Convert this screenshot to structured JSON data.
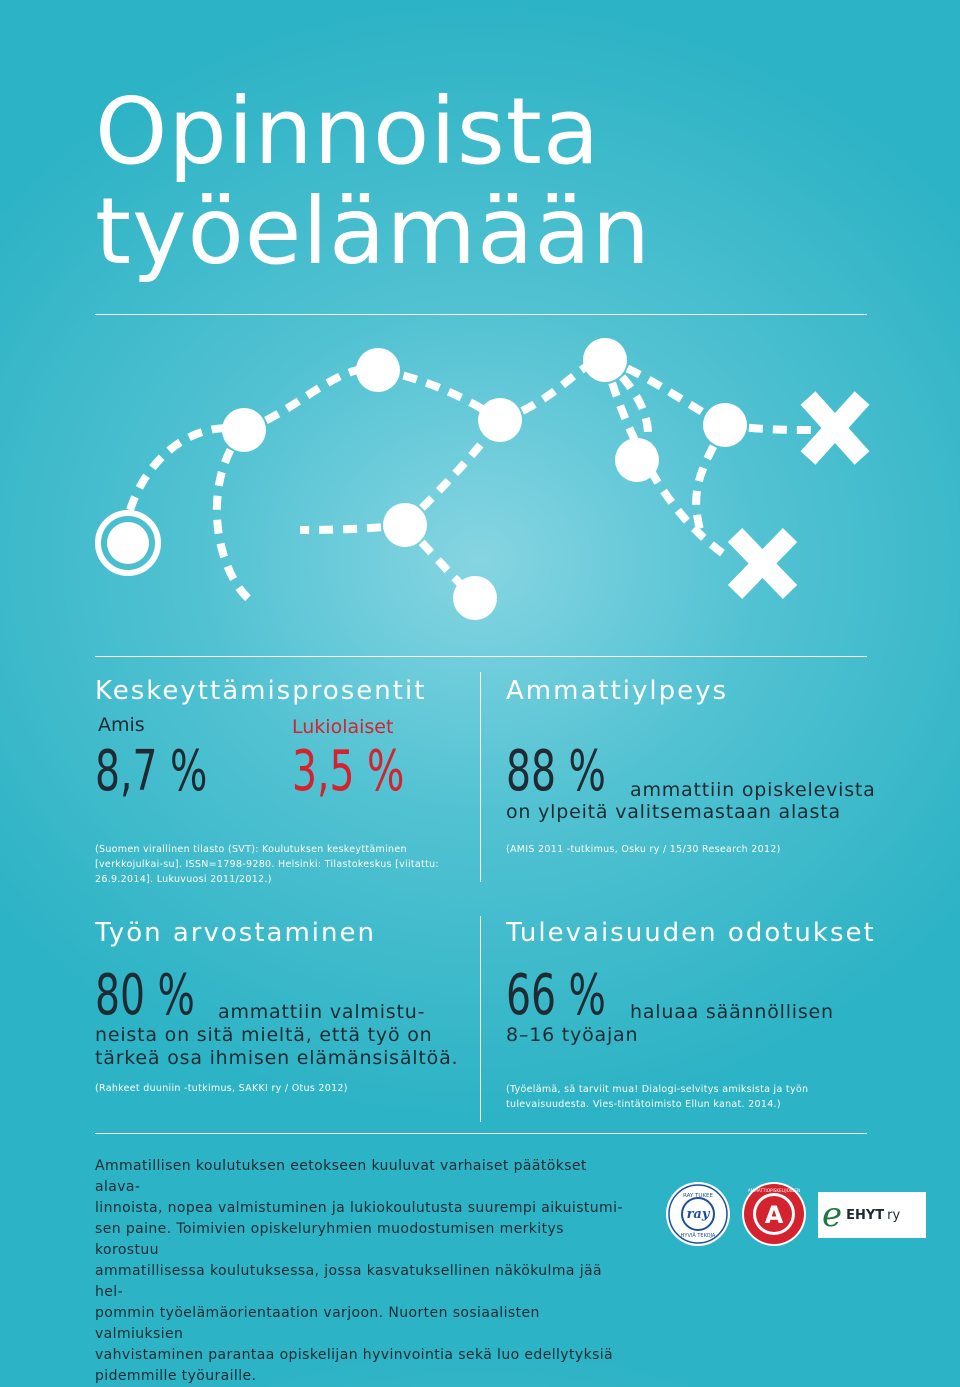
{
  "title": {
    "line1": "Opinnoista",
    "line2": "työelämään"
  },
  "dropout": {
    "heading": "Keskeyttämisprosentit",
    "amis_label": "Amis",
    "amis_value": "8,7 %",
    "lukio_label": "Lukiolaiset",
    "lukio_value": "3,5 %",
    "source": "(Suomen virallinen tilasto (SVT): Koulutuksen keskeyttäminen [verkkojulkai-su]. ISSN=1798-9280. Helsinki: Tilastokeskus [viitattu: 26.9.2014]. Lukuvuosi 2011/2012.)"
  },
  "pride": {
    "heading": "Ammattiylpeys",
    "value": "88 %",
    "text1": "ammattiin opiskelevista",
    "text2": "on ylpeitä valitsemastaan alasta",
    "source": "(AMIS 2011 -tutkimus, Osku ry / 15/30 Research 2012)"
  },
  "work_value": {
    "heading": "Työn arvostaminen",
    "value": "80 %",
    "text1": "ammattiin valmistu-",
    "text2": "neista on sitä mieltä, että työ on",
    "text3": "tärkeä osa ihmisen elämänsisältöä.",
    "source": "(Rahkeet duuniin -tutkimus, SAKKI ry / Otus 2012)"
  },
  "future": {
    "heading": "Tulevaisuuden odotukset",
    "value": "66 %",
    "text1": "haluaa säännöllisen",
    "text2": "8–16 työajan",
    "source": "(Työelämä, sä tarviit mua! Dialogi-selvitys amiksista ja työn tulevaisuudesta. Vies-tintätoimisto Ellun kanat. 2014.)"
  },
  "body": {
    "lines": [
      "Ammatillisen koulutuksen eetokseen kuuluvat varhaiset päätökset alava-",
      "linnoista, nopea valmistuminen ja lukiokoulutusta suurempi aikuistumi-",
      "sen paine. Toimivien opiskeluryhmien muodostumisen merkitys korostuu",
      "ammatillisessa koulutuksessa, jossa kasvatuksellinen näkökulma jää hel-",
      "pommin työelämäorientaation varjoon. Nuorten sosiaalisten valmiuksien",
      "vahvistaminen parantaa opiskelijan hyvinvointia sekä luo edellytyksiä",
      "pidemmille työuraille."
    ]
  },
  "logos": {
    "ray_top": "RAY TUKEE",
    "ray_center": "ray",
    "ray_bottom": "HYVIÄ TEKOJA",
    "osku_ring": "AMMATTIOPISKELIJOIDEN",
    "osku_letter": "A",
    "ehyt_mark": "e",
    "ehyt_text": "EHYT",
    "ehyt_ry": "ry"
  },
  "colors": {
    "background": "#2cb3c5",
    "dark_text": "#1f2b33",
    "accent_red": "#d4222e",
    "white": "#ffffff"
  }
}
